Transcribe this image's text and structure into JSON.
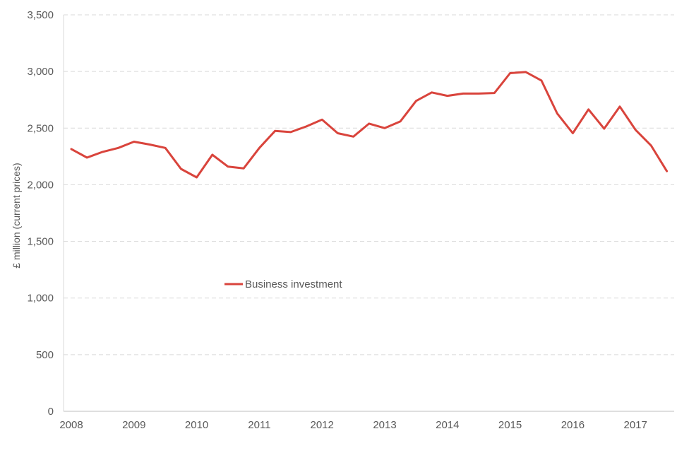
{
  "chart_data": {
    "type": "line",
    "title": "",
    "xlabel": "",
    "ylabel": "£ million (current prices)",
    "ylim": [
      0,
      3500
    ],
    "yticks": [
      0,
      500,
      1000,
      1500,
      2000,
      2500,
      3000,
      3500
    ],
    "ytick_labels": [
      "0",
      "500",
      "1,000",
      "1,500",
      "2,000",
      "2,500",
      "3,000",
      "3,500"
    ],
    "xticks": [
      "2008",
      "2009",
      "2010",
      "2011",
      "2012",
      "2013",
      "2014",
      "2015",
      "2016",
      "2017"
    ],
    "grid": "horizontal dashed",
    "legend_position": "center-left",
    "series": [
      {
        "name": "Business investment",
        "color": "#d9443c",
        "x": [
          "2008 Q1",
          "2008 Q2",
          "2008 Q3",
          "2008 Q4",
          "2009 Q1",
          "2009 Q2",
          "2009 Q3",
          "2009 Q4",
          "2010 Q1",
          "2010 Q2",
          "2010 Q3",
          "2010 Q4",
          "2011 Q1",
          "2011 Q2",
          "2011 Q3",
          "2011 Q4",
          "2012 Q1",
          "2012 Q2",
          "2012 Q3",
          "2012 Q4",
          "2013 Q1",
          "2013 Q2",
          "2013 Q3",
          "2013 Q4",
          "2014 Q1",
          "2014 Q2",
          "2014 Q3",
          "2014 Q4",
          "2015 Q1",
          "2015 Q2",
          "2015 Q3",
          "2015 Q4",
          "2016 Q1",
          "2016 Q2",
          "2016 Q3",
          "2016 Q4",
          "2017 Q1",
          "2017 Q2",
          "2017 Q3"
        ],
        "values": [
          2315,
          2240,
          2290,
          2325,
          2380,
          2355,
          2325,
          2140,
          2065,
          2265,
          2160,
          2145,
          2325,
          2475,
          2465,
          2515,
          2575,
          2455,
          2425,
          2540,
          2500,
          2560,
          2740,
          2815,
          2785,
          2805,
          2805,
          2810,
          2985,
          2995,
          2920,
          2630,
          2455,
          2665,
          2495,
          2690,
          2485,
          2345,
          2120
        ]
      }
    ]
  }
}
